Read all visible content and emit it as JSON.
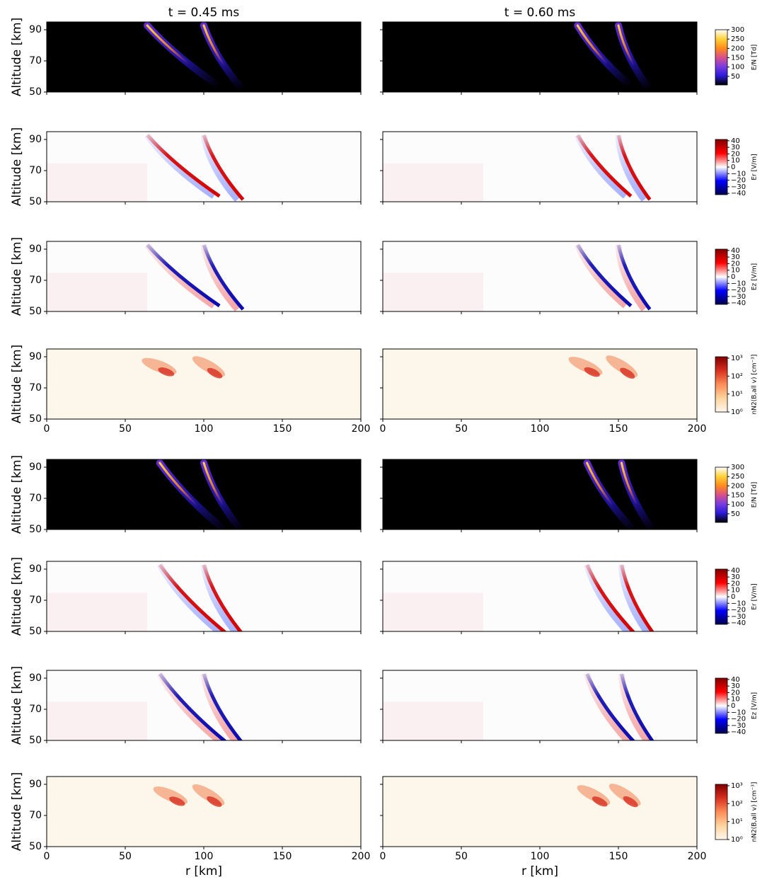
{
  "chart_data": {
    "type": "heatmap-grid",
    "columns": [
      "t = 0.45 ms",
      "t = 0.60 ms"
    ],
    "xlabel": "r [km]",
    "ylabel": "Altitude [km]",
    "xlim": [
      0,
      200
    ],
    "xticks": [
      0,
      50,
      100,
      150,
      200
    ],
    "ylim": [
      50,
      95
    ],
    "yticks": [
      50,
      70,
      90
    ],
    "colorbars": [
      {
        "label": "E/N [Td]",
        "lim": [
          4,
          300
        ],
        "ticks": [
          50,
          100,
          150,
          200,
          250,
          300
        ],
        "colors": [
          "#000000",
          "#2a1ad8",
          "#7a3ce0",
          "#d9508a",
          "#ff8c1a",
          "#ffd23a",
          "#ffffff"
        ],
        "background": "#000000"
      },
      {
        "label": "Er [V/m]",
        "lim": [
          -42,
          42
        ],
        "ticks": [
          {
            "value": -40,
            "label": "−40"
          },
          {
            "value": -30,
            "label": "−30"
          },
          {
            "value": -20,
            "label": "−20"
          },
          {
            "value": -10,
            "label": "−10"
          },
          0,
          10,
          20,
          30,
          40
        ],
        "colors": [
          "#00004c",
          "#0000ff",
          "#ffffff",
          "#ff0000",
          "#800000"
        ],
        "background": "#fdfcfd"
      },
      {
        "label": "Ez [V/m]",
        "lim": [
          -42,
          42
        ],
        "ticks": [
          {
            "value": -40,
            "label": "−40"
          },
          {
            "value": -30,
            "label": "−30"
          },
          {
            "value": -20,
            "label": "−20"
          },
          {
            "value": -10,
            "label": "−10"
          },
          0,
          10,
          20,
          30,
          40
        ],
        "colors": [
          "#00004c",
          "#0000ff",
          "#ffffff",
          "#ff0000",
          "#800000"
        ],
        "background": "#fdfcfd"
      },
      {
        "label": "nN2(B,all v) [cm⁻³]",
        "lim": [
          1,
          1200
        ],
        "log": true,
        "ticks": [
          {
            "value": 1,
            "label": "10⁰"
          },
          {
            "value": 10,
            "label": "10¹"
          },
          {
            "value": 100,
            "label": "10²"
          },
          {
            "value": 1000,
            "label": "10³"
          }
        ],
        "colors": [
          "#fff7ec",
          "#fdd49e",
          "#fc8d59",
          "#d7301f",
          "#7f0000"
        ],
        "background": "#fdf6ea"
      }
    ]
  }
}
